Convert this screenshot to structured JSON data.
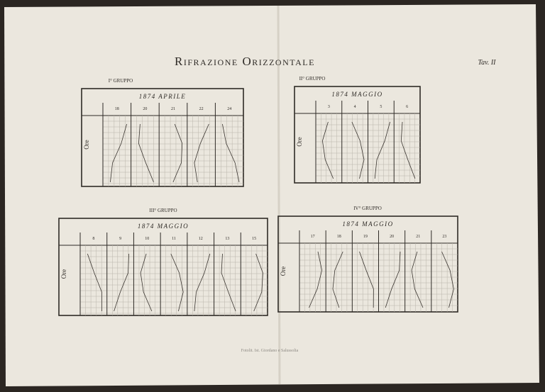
{
  "title": "Rifrazione Orizzontale",
  "plate": "Tav. II",
  "groups": [
    {
      "label": "I° Gruppo",
      "heading": "1874 Aprile",
      "axis_label": "Ore",
      "days": [
        "18",
        "20",
        "21",
        "22",
        "24"
      ]
    },
    {
      "label": "II° Gruppo",
      "heading": "1874 Maggio",
      "axis_label": "Ore",
      "days": [
        "3",
        "4",
        "5",
        "6"
      ]
    },
    {
      "label": "III° Gruppo",
      "heading": "1874 Maggio",
      "axis_label": "Ore",
      "days": [
        "8",
        "9",
        "10",
        "11",
        "12",
        "13",
        "15"
      ]
    },
    {
      "label": "IV° Gruppo",
      "heading": "1874 Maggio",
      "axis_label": "Ore",
      "days": [
        "17",
        "18",
        "19",
        "20",
        "21",
        "23"
      ]
    }
  ],
  "imprint": "Fotolit. Ist. Giordano e Salussolia"
}
